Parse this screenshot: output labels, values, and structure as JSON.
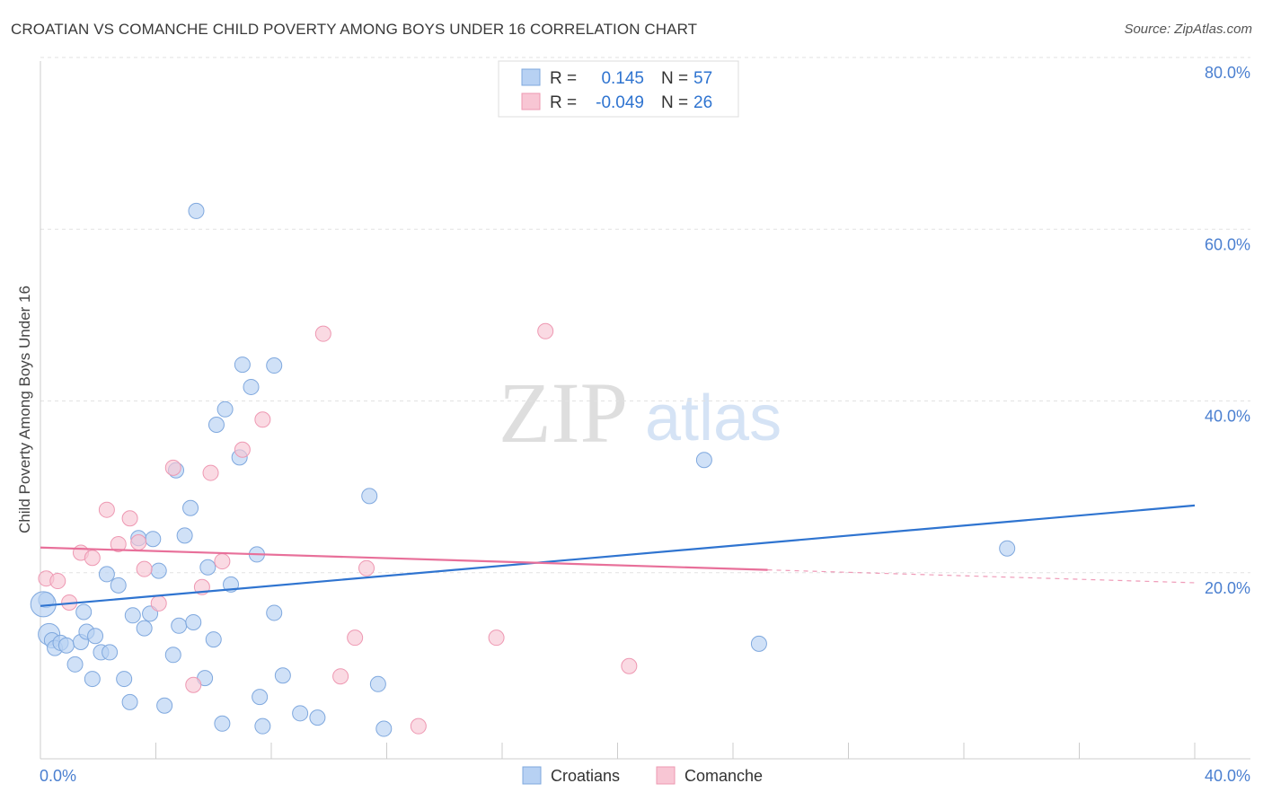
{
  "header": {
    "title": "CROATIAN VS COMANCHE CHILD POVERTY AMONG BOYS UNDER 16 CORRELATION CHART",
    "source": "Source: ZipAtlas.com"
  },
  "watermark": {
    "zip": "ZIP",
    "atlas": "atlas"
  },
  "legend": {
    "rows": [
      {
        "r_label": "R =",
        "r_value": "0.145",
        "n_label": "N =",
        "n_value": "57",
        "color": "#a9c8f0"
      },
      {
        "r_label": "R =",
        "r_value": "-0.049",
        "n_label": "N =",
        "n_value": "26",
        "color": "#f5b7c8"
      }
    ]
  },
  "bottom_legend": [
    {
      "label": "Croatians",
      "color": "#a9c8f0"
    },
    {
      "label": "Comanche",
      "color": "#f5b7c8"
    }
  ],
  "colors": {
    "croatians_fill": "#b7d1f3",
    "croatians_stroke": "#7fa8de",
    "croatians_line": "#2f74d0",
    "comanche_fill": "#f8c6d4",
    "comanche_stroke": "#ee98b2",
    "comanche_line": "#e8709a",
    "tick_text": "#4a7fd0"
  },
  "chart_data": {
    "type": "scatter",
    "title": "CROATIAN VS COMANCHE CHILD POVERTY AMONG BOYS UNDER 16 CORRELATION CHART",
    "xlabel": "",
    "ylabel": "Child Poverty Among Boys Under 16",
    "xlim": [
      0,
      40
    ],
    "ylim": [
      0,
      80
    ],
    "x_tick_labels": [
      "0.0%",
      "40.0%"
    ],
    "y_ticks": [
      20,
      40,
      60,
      80
    ],
    "y_tick_labels": [
      "20.0%",
      "40.0%",
      "60.0%",
      "80.0%"
    ],
    "grid": "horizontal dashed",
    "legend_position": "top-center",
    "series": [
      {
        "name": "Croatians",
        "r": 0.145,
        "n": 57,
        "trend": {
          "x": [
            0,
            40
          ],
          "y": [
            17.8,
            29.5
          ]
        },
        "points": [
          [
            0.2,
            18.5
          ],
          [
            0.3,
            14.5
          ],
          [
            0.4,
            13.8
          ],
          [
            0.5,
            12.9
          ],
          [
            0.7,
            13.5
          ],
          [
            0.9,
            13.2
          ],
          [
            1.2,
            11.0
          ],
          [
            1.4,
            13.6
          ],
          [
            1.5,
            17.1
          ],
          [
            1.6,
            14.8
          ],
          [
            1.8,
            9.3
          ],
          [
            1.9,
            14.3
          ],
          [
            2.1,
            12.4
          ],
          [
            2.3,
            21.5
          ],
          [
            2.4,
            12.4
          ],
          [
            2.7,
            20.2
          ],
          [
            2.9,
            9.3
          ],
          [
            3.1,
            6.6
          ],
          [
            3.2,
            16.7
          ],
          [
            3.4,
            25.7
          ],
          [
            3.6,
            15.2
          ],
          [
            3.8,
            16.9
          ],
          [
            3.9,
            25.6
          ],
          [
            4.1,
            21.9
          ],
          [
            4.3,
            6.2
          ],
          [
            4.6,
            12.1
          ],
          [
            4.7,
            33.6
          ],
          [
            4.8,
            15.5
          ],
          [
            5.0,
            26.0
          ],
          [
            5.2,
            29.2
          ],
          [
            5.3,
            15.9
          ],
          [
            5.4,
            63.8
          ],
          [
            5.7,
            9.4
          ],
          [
            5.8,
            22.3
          ],
          [
            6.0,
            13.9
          ],
          [
            6.1,
            38.9
          ],
          [
            6.3,
            4.1
          ],
          [
            6.4,
            40.7
          ],
          [
            6.6,
            20.3
          ],
          [
            6.9,
            35.1
          ],
          [
            7.0,
            45.9
          ],
          [
            7.3,
            43.3
          ],
          [
            7.5,
            23.8
          ],
          [
            7.6,
            7.2
          ],
          [
            7.7,
            3.8
          ],
          [
            8.1,
            17.0
          ],
          [
            8.1,
            45.8
          ],
          [
            8.4,
            9.7
          ],
          [
            9.0,
            5.3
          ],
          [
            9.6,
            4.8
          ],
          [
            11.4,
            30.6
          ],
          [
            11.7,
            8.7
          ],
          [
            11.9,
            3.5
          ],
          [
            23.0,
            34.8
          ],
          [
            24.9,
            13.4
          ],
          [
            33.5,
            24.5
          ],
          [
            0.1,
            18.0
          ]
        ]
      },
      {
        "name": "Comanche",
        "r": -0.049,
        "n": 26,
        "trend": {
          "x": [
            0,
            25.2
          ],
          "y": [
            24.6,
            22.0
          ]
        },
        "trend_dashed": {
          "x": [
            25.2,
            40
          ],
          "y": [
            22.0,
            20.5
          ]
        },
        "points": [
          [
            0.2,
            21.0
          ],
          [
            0.6,
            20.7
          ],
          [
            1.0,
            18.2
          ],
          [
            1.4,
            24.0
          ],
          [
            1.8,
            23.4
          ],
          [
            2.3,
            29.0
          ],
          [
            2.7,
            25.0
          ],
          [
            3.1,
            28.0
          ],
          [
            3.4,
            25.2
          ],
          [
            3.6,
            22.1
          ],
          [
            4.1,
            18.1
          ],
          [
            4.6,
            33.9
          ],
          [
            5.3,
            8.6
          ],
          [
            5.6,
            20.0
          ],
          [
            5.9,
            33.3
          ],
          [
            6.3,
            23.0
          ],
          [
            7.0,
            36.0
          ],
          [
            7.7,
            39.5
          ],
          [
            9.8,
            49.5
          ],
          [
            10.4,
            9.6
          ],
          [
            10.9,
            14.1
          ],
          [
            11.3,
            22.2
          ],
          [
            13.1,
            3.8
          ],
          [
            15.8,
            14.1
          ],
          [
            17.5,
            49.8
          ],
          [
            20.4,
            10.8
          ]
        ]
      }
    ]
  }
}
